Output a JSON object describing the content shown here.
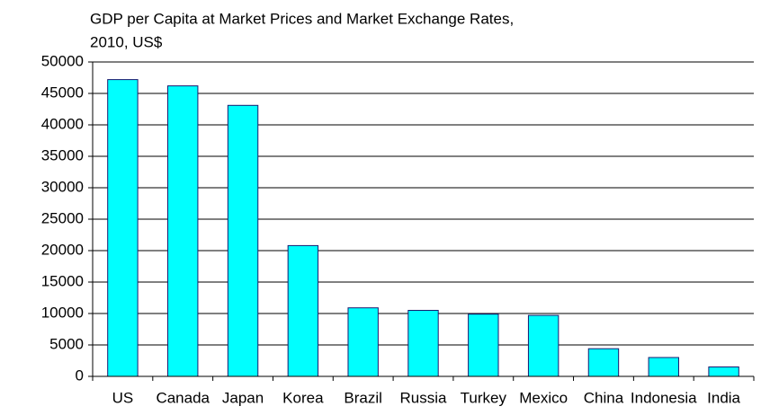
{
  "chart_data": {
    "type": "bar",
    "title": [
      "GDP per Capita at Market Prices and Market Exchange Rates,",
      "2010, US$"
    ],
    "categories": [
      "US",
      "Canada",
      "Japan",
      "Korea",
      "Brazil",
      "Russia",
      "Turkey",
      "Mexico",
      "China",
      "Indonesia",
      "India"
    ],
    "values": [
      47200,
      46200,
      43100,
      20800,
      10900,
      10500,
      9900,
      9700,
      4400,
      3000,
      1500
    ],
    "color": "#00ffff",
    "edge_color": "#1a1a6e",
    "ylim": [
      0,
      50000
    ],
    "yticks": [
      0,
      5000,
      10000,
      15000,
      20000,
      25000,
      30000,
      35000,
      40000,
      45000,
      50000
    ],
    "grid": true
  }
}
